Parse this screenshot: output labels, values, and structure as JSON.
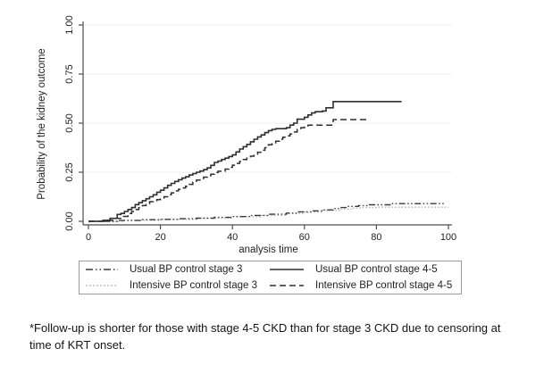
{
  "figure": {
    "footnote_line1": "*Follow-up is shorter for those with stage 4-5 CKD than for stage 3 CKD due to censoring at",
    "footnote_line2": "time of KRT onset."
  },
  "chart_data": {
    "type": "line",
    "subtype": "kaplan-meier-step",
    "title": "",
    "xlabel": "analysis time",
    "ylabel": "Probability of the kidney outcome",
    "xlim": [
      0,
      100
    ],
    "ylim": [
      0,
      1
    ],
    "x_ticks": [
      "0",
      "20",
      "40",
      "60",
      "80",
      "100"
    ],
    "y_ticks": [
      "0.00",
      "0.25",
      "0.50",
      "0.75",
      "1.00"
    ],
    "grid": "horizontal",
    "legend_position": "bottom",
    "series": [
      {
        "name": "Intensive BP control stage 3",
        "style": "fine-dotted",
        "color": "#b0b0b0",
        "points": [
          [
            0,
            0
          ],
          [
            10,
            0.005
          ],
          [
            20,
            0.01
          ],
          [
            30,
            0.016
          ],
          [
            40,
            0.023
          ],
          [
            48,
            0.03
          ],
          [
            55,
            0.04
          ],
          [
            60,
            0.047
          ],
          [
            65,
            0.055
          ],
          [
            70,
            0.062
          ],
          [
            73,
            0.067
          ],
          [
            76,
            0.07
          ],
          [
            80,
            0.072
          ],
          [
            100,
            0.072
          ]
        ]
      },
      {
        "name": "Usual BP control stage 3",
        "style": "dash-dot-dot",
        "color": "#3a3a3a",
        "points": [
          [
            0,
            0
          ],
          [
            8,
            0.004
          ],
          [
            15,
            0.008
          ],
          [
            20,
            0.01
          ],
          [
            25,
            0.013
          ],
          [
            30,
            0.016
          ],
          [
            35,
            0.02
          ],
          [
            40,
            0.024
          ],
          [
            45,
            0.03
          ],
          [
            50,
            0.036
          ],
          [
            55,
            0.042
          ],
          [
            58,
            0.048
          ],
          [
            62,
            0.053
          ],
          [
            65,
            0.058
          ],
          [
            68,
            0.065
          ],
          [
            70,
            0.07
          ],
          [
            72,
            0.076
          ],
          [
            75,
            0.08
          ],
          [
            78,
            0.084
          ],
          [
            84,
            0.09
          ],
          [
            99,
            0.09
          ]
        ]
      },
      {
        "name": "Intensive BP control stage 4-5",
        "style": "dashed",
        "color": "#2e2e2e",
        "points": [
          [
            0,
            0
          ],
          [
            5,
            0.005
          ],
          [
            7,
            0.015
          ],
          [
            9,
            0.025
          ],
          [
            11,
            0.04
          ],
          [
            12,
            0.05
          ],
          [
            13,
            0.06
          ],
          [
            14,
            0.07
          ],
          [
            15,
            0.08
          ],
          [
            16,
            0.09
          ],
          [
            17,
            0.1
          ],
          [
            18,
            0.105
          ],
          [
            19,
            0.11
          ],
          [
            20,
            0.115
          ],
          [
            21,
            0.125
          ],
          [
            22,
            0.135
          ],
          [
            23,
            0.145
          ],
          [
            24,
            0.155
          ],
          [
            25,
            0.163
          ],
          [
            26,
            0.17
          ],
          [
            27,
            0.178
          ],
          [
            28,
            0.188
          ],
          [
            29,
            0.2
          ],
          [
            30,
            0.21
          ],
          [
            31,
            0.218
          ],
          [
            32,
            0.225
          ],
          [
            33,
            0.232
          ],
          [
            34,
            0.24
          ],
          [
            35,
            0.248
          ],
          [
            36,
            0.255
          ],
          [
            38,
            0.266
          ],
          [
            39,
            0.275
          ],
          [
            40,
            0.286
          ],
          [
            41,
            0.295
          ],
          [
            42,
            0.305
          ],
          [
            43,
            0.315
          ],
          [
            44,
            0.322
          ],
          [
            45,
            0.332
          ],
          [
            46,
            0.342
          ],
          [
            47,
            0.352
          ],
          [
            48,
            0.362
          ],
          [
            49,
            0.375
          ],
          [
            50,
            0.39
          ],
          [
            51,
            0.398
          ],
          [
            52,
            0.408
          ],
          [
            53,
            0.418
          ],
          [
            54,
            0.428
          ],
          [
            55,
            0.435
          ],
          [
            56,
            0.445
          ],
          [
            57,
            0.455
          ],
          [
            58,
            0.468
          ],
          [
            59,
            0.477
          ],
          [
            60,
            0.485
          ],
          [
            61,
            0.49
          ],
          [
            67,
            0.49
          ],
          [
            68,
            0.518
          ],
          [
            78,
            0.518
          ]
        ]
      },
      {
        "name": "Usual BP control stage 4-5",
        "style": "solid",
        "color": "#2e2e2e",
        "points": [
          [
            0,
            0
          ],
          [
            4,
            0.005
          ],
          [
            6,
            0.015
          ],
          [
            8,
            0.035
          ],
          [
            9,
            0.04
          ],
          [
            10,
            0.05
          ],
          [
            11,
            0.06
          ],
          [
            12,
            0.07
          ],
          [
            13,
            0.085
          ],
          [
            14,
            0.095
          ],
          [
            15,
            0.105
          ],
          [
            16,
            0.115
          ],
          [
            17,
            0.125
          ],
          [
            18,
            0.135
          ],
          [
            19,
            0.148
          ],
          [
            20,
            0.158
          ],
          [
            21,
            0.17
          ],
          [
            22,
            0.183
          ],
          [
            23,
            0.193
          ],
          [
            24,
            0.203
          ],
          [
            25,
            0.212
          ],
          [
            26,
            0.22
          ],
          [
            27,
            0.227
          ],
          [
            28,
            0.236
          ],
          [
            29,
            0.243
          ],
          [
            30,
            0.25
          ],
          [
            31,
            0.256
          ],
          [
            32,
            0.263
          ],
          [
            33,
            0.272
          ],
          [
            34,
            0.285
          ],
          [
            35,
            0.3
          ],
          [
            36,
            0.307
          ],
          [
            37,
            0.315
          ],
          [
            38,
            0.322
          ],
          [
            39,
            0.33
          ],
          [
            40,
            0.338
          ],
          [
            41,
            0.353
          ],
          [
            42,
            0.368
          ],
          [
            43,
            0.38
          ],
          [
            44,
            0.392
          ],
          [
            45,
            0.405
          ],
          [
            46,
            0.418
          ],
          [
            47,
            0.43
          ],
          [
            48,
            0.44
          ],
          [
            49,
            0.452
          ],
          [
            50,
            0.462
          ],
          [
            51,
            0.468
          ],
          [
            52,
            0.472
          ],
          [
            55,
            0.477
          ],
          [
            56,
            0.49
          ],
          [
            57,
            0.5
          ],
          [
            58,
            0.52
          ],
          [
            60,
            0.53
          ],
          [
            61,
            0.542
          ],
          [
            62,
            0.552
          ],
          [
            63,
            0.558
          ],
          [
            65,
            0.562
          ],
          [
            66,
            0.578
          ],
          [
            68,
            0.61
          ],
          [
            87,
            0.61
          ]
        ]
      }
    ],
    "legend": {
      "items": [
        {
          "label": "Usual BP control stage 3",
          "style": "dash-dot-dot",
          "color": "#3a3a3a"
        },
        {
          "label": "Usual BP control stage 4-5",
          "style": "solid",
          "color": "#2e2e2e"
        },
        {
          "label": "Intensive BP control stage 3",
          "style": "fine-dotted",
          "color": "#b0b0b0"
        },
        {
          "label": "Intensive BP control stage 4-5",
          "style": "dashed",
          "color": "#2e2e2e"
        }
      ]
    }
  }
}
